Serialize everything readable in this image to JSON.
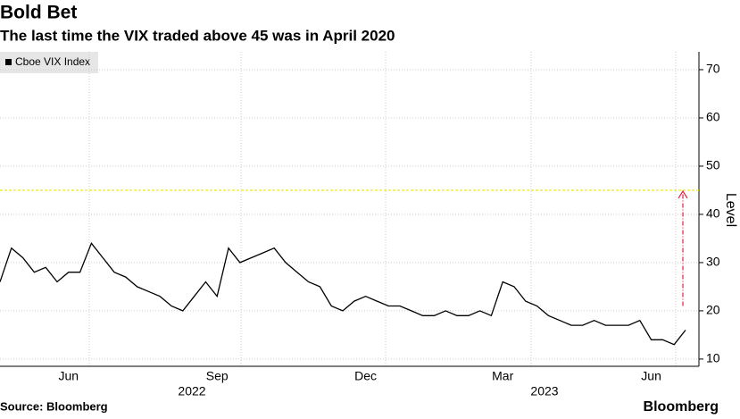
{
  "chart_data": {
    "type": "line",
    "title": "Bold Bet",
    "subtitle": "The last time the VIX traded above 45 was in April 2020",
    "y_label": "Level",
    "source": "Source: Bloomberg",
    "brand": "Bloomberg",
    "categories": [
      null,
      null,
      null,
      null,
      null,
      null,
      "Jun",
      null,
      null,
      null,
      null,
      null,
      null,
      null,
      null,
      null,
      null,
      null,
      null,
      "Sep",
      null,
      null,
      null,
      null,
      null,
      null,
      null,
      null,
      null,
      null,
      null,
      null,
      "Dec",
      null,
      null,
      null,
      null,
      null,
      null,
      null,
      null,
      null,
      null,
      null,
      "Mar",
      null,
      null,
      null,
      null,
      null,
      null,
      null,
      null,
      null,
      null,
      null,
      null,
      "Jun",
      null,
      null,
      null
    ],
    "year_labels": [
      "2022",
      "2023"
    ],
    "series": [
      {
        "name": "Cboe VIX Index",
        "color": "#000000",
        "values": [
          26,
          33,
          31,
          28,
          29,
          26,
          28,
          28,
          34,
          31,
          28,
          27,
          25,
          24,
          23,
          21,
          20,
          23,
          26,
          23,
          33,
          30,
          31,
          32,
          33,
          30,
          28,
          26,
          25,
          21,
          20,
          22,
          23,
          22,
          21,
          21,
          20,
          19,
          19,
          20,
          19,
          19,
          20,
          19,
          26,
          25,
          22,
          21,
          19,
          18,
          17,
          17,
          18,
          17,
          17,
          17,
          18,
          14,
          14,
          13,
          16
        ]
      }
    ],
    "threshold": 45,
    "threshold_color": "#e8e800",
    "arrow_color": "#e0203a",
    "ylim": [
      8.5,
      73.7
    ],
    "yticks": [
      10,
      20,
      30,
      40,
      50,
      60,
      70
    ],
    "grid": true
  }
}
